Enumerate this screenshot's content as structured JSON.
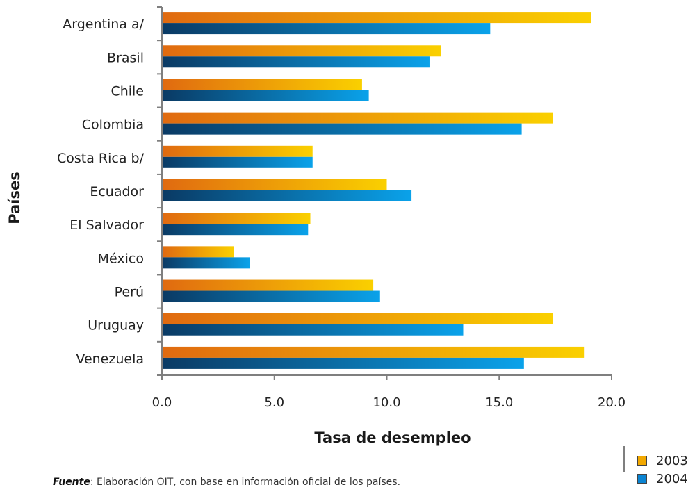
{
  "chart_data": {
    "type": "bar",
    "orientation": "horizontal",
    "categories": [
      "Argentina a/",
      "Brasil",
      "Chile",
      "Colombia",
      "Costa Rica b/",
      "Ecuador",
      "El Salvador",
      "México",
      "Perú",
      "Uruguay",
      "Venezuela"
    ],
    "series": [
      {
        "name": "2003",
        "values": [
          19.1,
          12.4,
          8.9,
          17.4,
          6.7,
          10.0,
          6.6,
          3.2,
          9.4,
          17.4,
          18.8
        ],
        "color_start": "#e06a10",
        "color_end": "#fad000"
      },
      {
        "name": "2004",
        "values": [
          14.6,
          11.9,
          9.2,
          16.0,
          6.7,
          11.1,
          6.5,
          3.9,
          9.7,
          13.4,
          16.1
        ],
        "color_start": "#0a3a64",
        "color_end": "#0aa2ea"
      }
    ],
    "xlabel": "Tasa de desempleo",
    "ylabel": "Países",
    "xlim": [
      0,
      20
    ],
    "xticks": [
      "0.0",
      "5.0",
      "10.0",
      "15.0",
      "20.0"
    ],
    "grid": false,
    "legend_position": "bottom-right"
  },
  "source": {
    "label": "Fuente",
    "text": ": Elaboración OIT, con base en información oficial de los países."
  },
  "legend": {
    "items": [
      {
        "label": "2003",
        "color": "#f2a800"
      },
      {
        "label": "2004",
        "color": "#0a84d2"
      }
    ]
  }
}
